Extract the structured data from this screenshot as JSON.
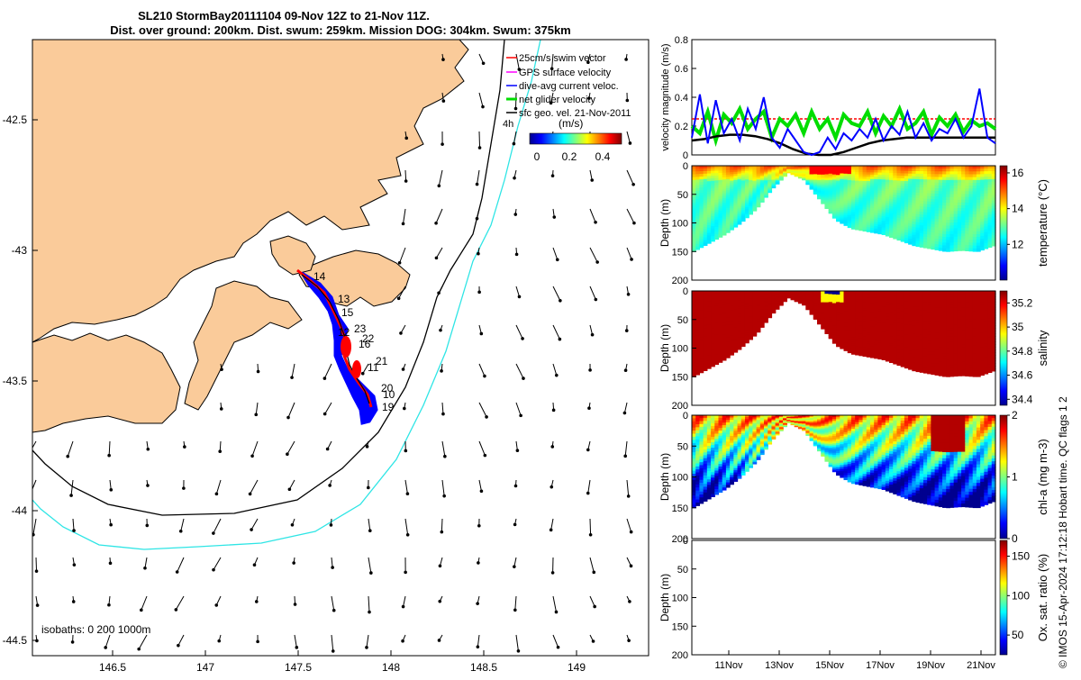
{
  "title": {
    "line1": "SL210 StormBay20111104 09-Nov 12Z to 21-Nov 11Z.",
    "line2": "Dist. over ground: 200km. Dist. swum: 259km. Mission DOG: 304km. Swum: 375km"
  },
  "map": {
    "x_ticks": [
      "146.5",
      "147",
      "147.5",
      "148",
      "148.5",
      "149"
    ],
    "y_ticks": [
      "-42.5",
      "-43",
      "-43.5",
      "-44",
      "-44.5"
    ],
    "legend": [
      "25cm/s swim vector",
      "GPS surface velocity",
      "dive-avg current veloc.",
      "net glider velocity",
      "sfc geo. vel. 21-Nov-2011"
    ],
    "legend_suffix": "4h",
    "colorbar_unit": "(m/s)",
    "colorbar_ticks": [
      "0",
      "0.2",
      "0.4"
    ],
    "isobaths_label": "isobaths: 0   200  1000m",
    "day_labels": [
      "14",
      "13",
      "15",
      "23",
      "12",
      "22",
      "16",
      "21",
      "11",
      "20",
      "10",
      "19"
    ],
    "colors": {
      "land": "#FACB9A",
      "isobath_200": "#000000",
      "isobath_1000": "#2EE5E5",
      "track_red": "#FF0000",
      "track_blue": "#0000FF"
    }
  },
  "chart_data": [
    {
      "type": "line",
      "title": "",
      "ylabel": "velocity magnitude (m/s)",
      "ylim": [
        0,
        0.8
      ],
      "yticks": [
        "0",
        "0.2",
        "0.4",
        "0.6",
        "0.8"
      ],
      "reference_line": 0.25,
      "series": [
        {
          "name": "dive-avg current veloc.",
          "color": "#0000FF",
          "values": [
            0.12,
            0.42,
            0.08,
            0.38,
            0.15,
            0.25,
            0.1,
            0.32,
            0.18,
            0.4,
            0.12,
            0.05,
            0.18,
            0.1,
            0.02,
            0.0,
            0.02,
            0.12,
            0.04,
            0.15,
            0.1,
            0.18,
            0.12,
            0.25,
            0.1,
            0.2,
            0.14,
            0.3,
            0.12,
            0.22,
            0.1,
            0.18,
            0.15,
            0.25,
            0.12,
            0.2,
            0.46,
            0.12,
            0.08
          ]
        },
        {
          "name": "net glider velocity",
          "color": "#00DD00",
          "values": [
            0.2,
            0.15,
            0.3,
            0.1,
            0.28,
            0.22,
            0.32,
            0.18,
            0.25,
            0.3,
            0.12,
            0.25,
            0.2,
            0.28,
            0.15,
            0.3,
            0.18,
            0.25,
            0.12,
            0.28,
            0.22,
            0.2,
            0.3,
            0.15,
            0.27,
            0.2,
            0.32,
            0.18,
            0.22,
            0.3,
            0.14,
            0.26,
            0.2,
            0.28,
            0.16,
            0.24,
            0.2,
            0.22,
            0.18
          ]
        },
        {
          "name": "sfc geo. vel.",
          "color": "#000000",
          "values": [
            0.1,
            0.11,
            0.13,
            0.14,
            0.14,
            0.13,
            0.11,
            0.08,
            0.04,
            0.01,
            0.0,
            0.0,
            0.02,
            0.05,
            0.08,
            0.1,
            0.11,
            0.12,
            0.12,
            0.12,
            0.12,
            0.12,
            0.12,
            0.12,
            0.12
          ]
        }
      ]
    },
    {
      "type": "heatmap",
      "ylabel": "Depth (m)",
      "colorbar_label": "temperature (°C)",
      "colorbar_ticks": [
        "12",
        "14",
        "16"
      ],
      "vmin": 10,
      "vmax": 16.4,
      "ylim": [
        200,
        0
      ],
      "yticks": [
        "0",
        "50",
        "100",
        "150",
        "200"
      ],
      "surface_value": 15.2,
      "deep_value": 13.0,
      "profile_bottom_depth": [
        150,
        135,
        120,
        100,
        75,
        40,
        12,
        25,
        60,
        95,
        110,
        115,
        120,
        130,
        140,
        145,
        150,
        148,
        150,
        140
      ]
    },
    {
      "type": "heatmap",
      "ylabel": "Depth (m)",
      "colorbar_label": "salinity",
      "colorbar_ticks": [
        "34.4",
        "34.6",
        "34.8",
        "35",
        "35.2"
      ],
      "vmin": 34.35,
      "vmax": 35.3,
      "ylim": [
        200,
        0
      ],
      "yticks": [
        "0",
        "50",
        "100",
        "150",
        "200"
      ],
      "surface_value": 35.25,
      "deep_value": 35.25,
      "profile_bottom_depth": [
        150,
        135,
        120,
        100,
        75,
        40,
        12,
        25,
        60,
        95,
        110,
        115,
        120,
        130,
        140,
        145,
        150,
        148,
        150,
        140
      ]
    },
    {
      "type": "heatmap",
      "ylabel": "Depth (m)",
      "colorbar_label": "chl-a (mg m-3)",
      "colorbar_ticks": [
        "0",
        "1",
        "2"
      ],
      "vmin": 0,
      "vmax": 2,
      "ylim": [
        200,
        0
      ],
      "yticks": [
        "0",
        "50",
        "100",
        "150",
        "200"
      ],
      "surface_value": 1.2,
      "deep_value": 0.2,
      "profile_bottom_depth": [
        150,
        135,
        120,
        100,
        75,
        40,
        12,
        25,
        60,
        95,
        110,
        115,
        120,
        130,
        140,
        145,
        150,
        148,
        150,
        140
      ]
    },
    {
      "type": "heatmap",
      "ylabel": "Depth (m)",
      "colorbar_label": "Ox. sat. ratio (%)",
      "colorbar_ticks": [
        "50",
        "100",
        "150"
      ],
      "vmin": 25,
      "vmax": 170,
      "ylim": [
        200,
        0
      ],
      "yticks": [
        "0",
        "50",
        "100",
        "150",
        "200"
      ],
      "xticks": [
        "11Nov",
        "13Nov",
        "15Nov",
        "17Nov",
        "19Nov",
        "21Nov"
      ]
    }
  ],
  "credit": "© IMOS 15-Apr-2024 17:12:18 Hobart time. QC flags 1  2"
}
